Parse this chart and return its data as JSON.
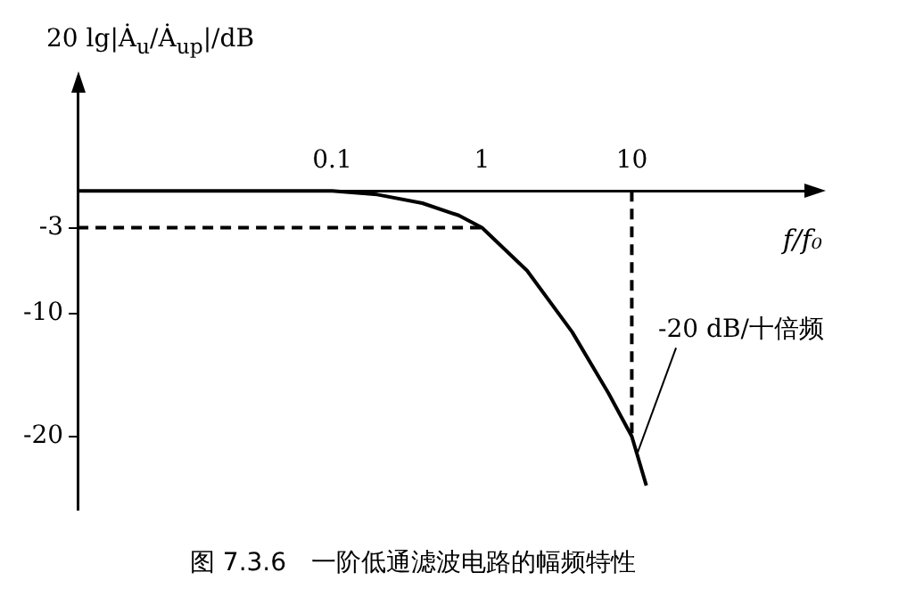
{
  "chart_data": {
    "type": "line",
    "title": "图 7.3.6　一阶低通滤波电路的幅频特性",
    "xlabel": "f/f₀",
    "ylabel": "20 lg|Ȧ$_{u}$/Ȧ$_{up}$|/dB",
    "log": "x",
    "grid": false,
    "marker": "none",
    "xlim": [
      0.002,
      150
    ],
    "xticks": [
      0.1,
      1,
      10
    ],
    "ylim": [
      -26,
      8
    ],
    "yticks": [
      -3,
      -10,
      -20
    ],
    "series": [
      {
        "color": "#000000",
        "line_style": "solid",
        "x": [
          0.002,
          0.05,
          0.1,
          0.2,
          0.4,
          0.7,
          1,
          2,
          4,
          7,
          10,
          12.5
        ],
        "values": [
          0,
          0,
          0,
          -0.3,
          -1,
          -2,
          -3,
          -6.5,
          -11.5,
          -16.5,
          -20,
          -24
        ]
      },
      {
        "color": "#000000",
        "line_style": "dashed",
        "x": [
          0.002,
          1
        ],
        "values": [
          -3,
          -3
        ]
      },
      {
        "color": "#000000",
        "line_style": "dashed",
        "x": [
          10,
          10
        ],
        "values": [
          0,
          -20
        ]
      }
    ],
    "annotations": [
      {
        "text": "-20 dB/十倍频",
        "x": 10.8,
        "y": -21.5
      }
    ]
  }
}
